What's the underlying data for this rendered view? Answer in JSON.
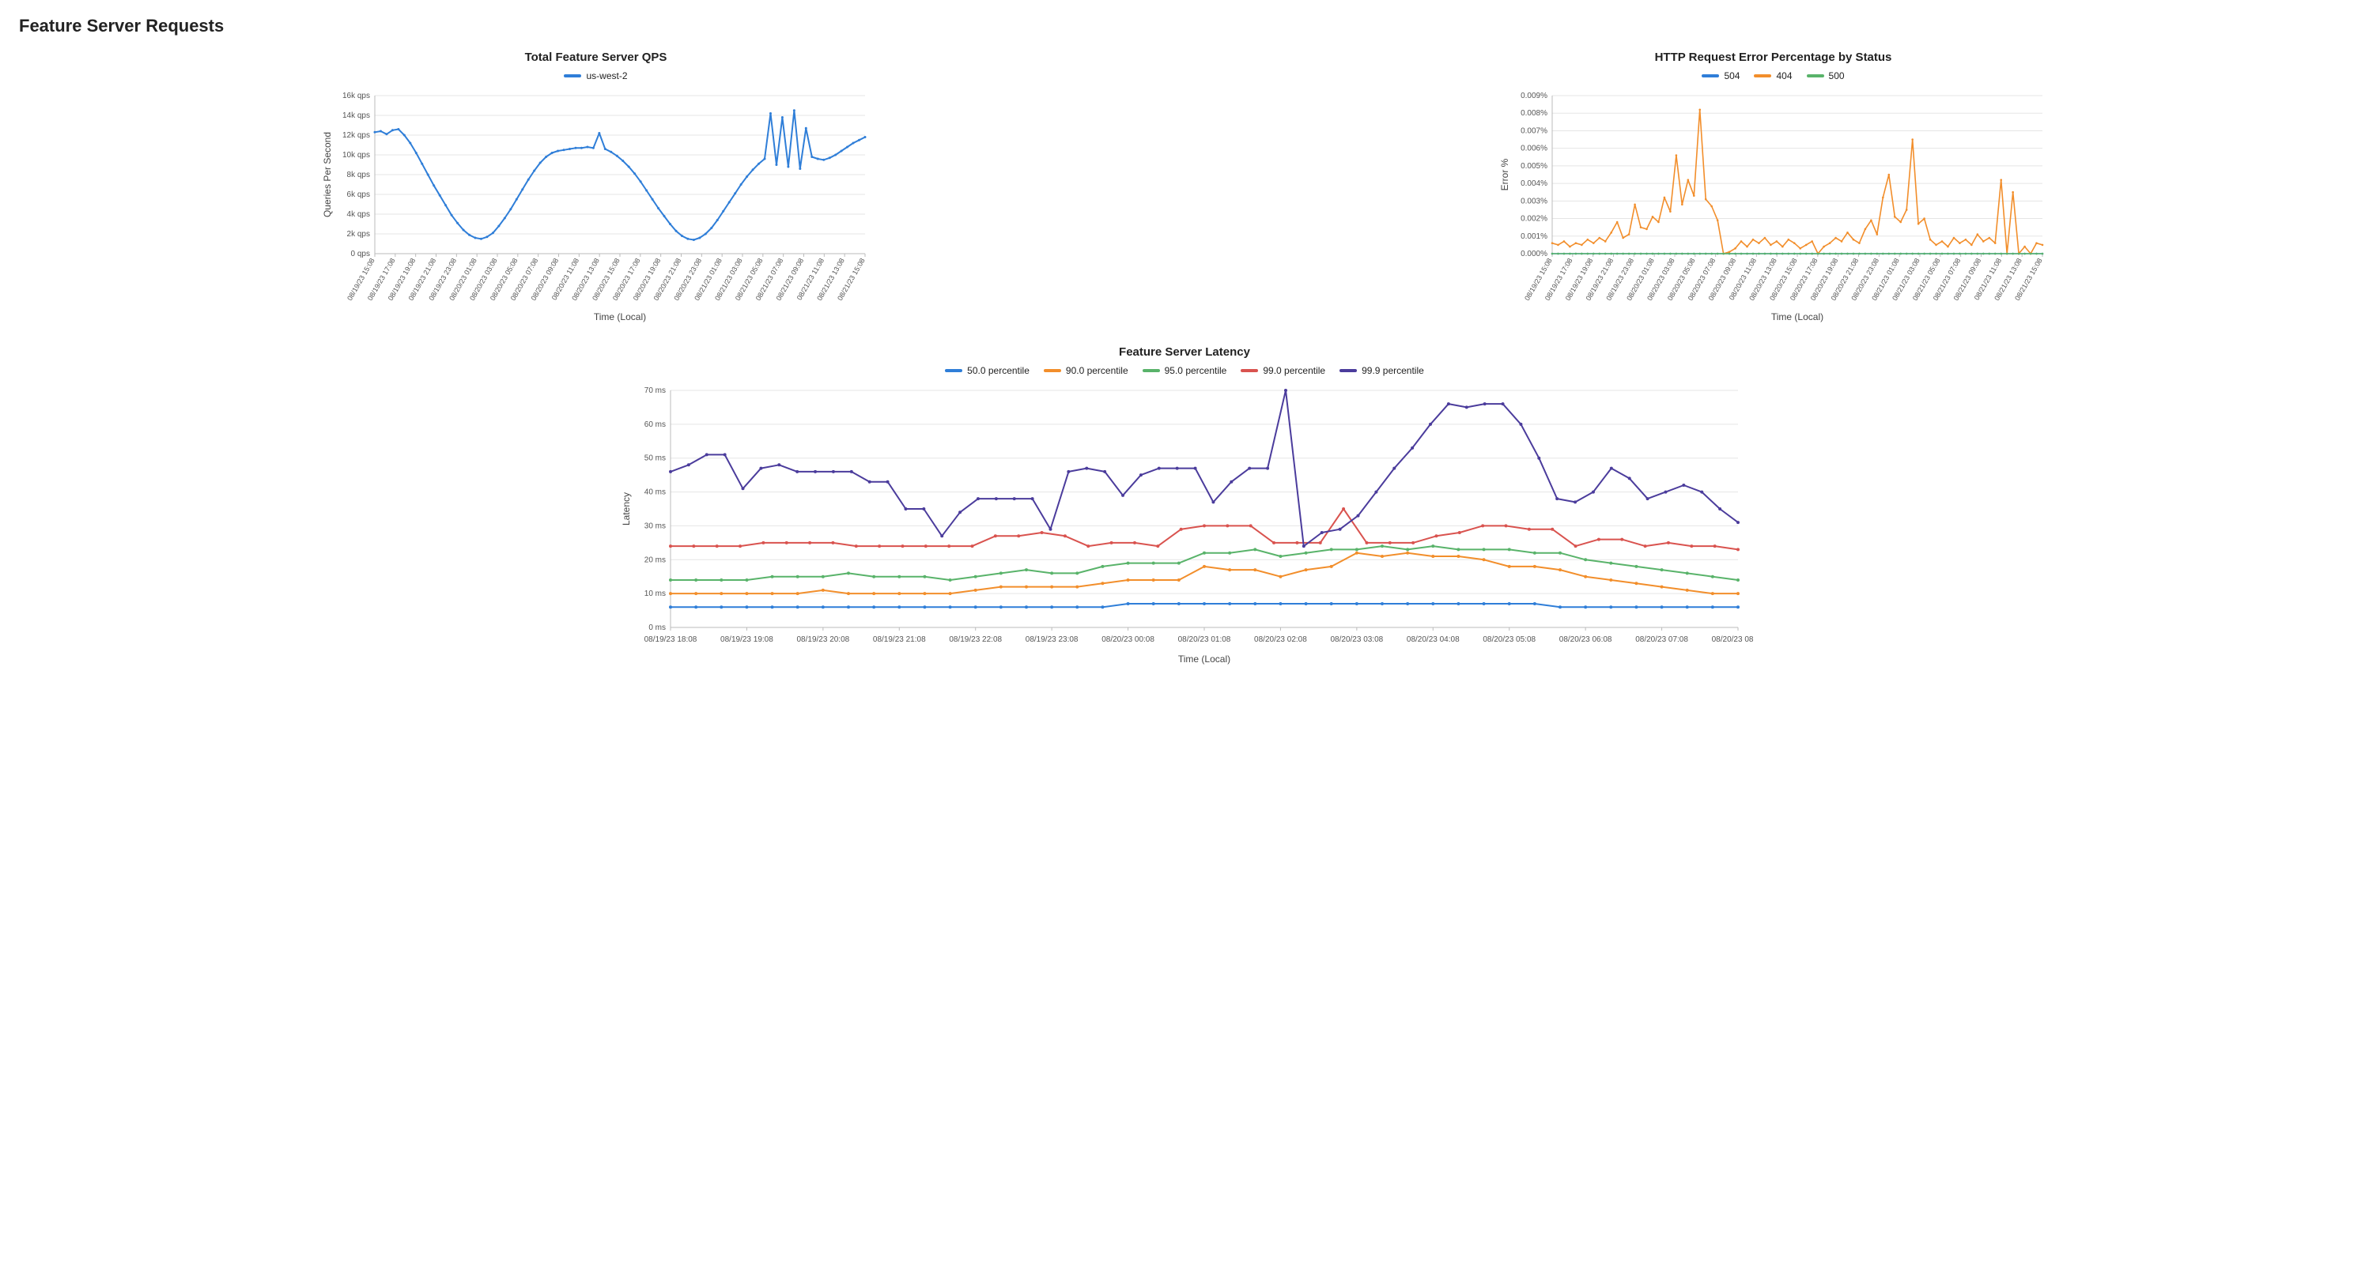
{
  "page_title": "Feature Server Requests",
  "colors": {
    "blue": "#2f7ed8",
    "orange": "#f28e2b",
    "green": "#59b36a",
    "red": "#d9534f",
    "purple": "#4b3c9c",
    "grid": "#e5e5e5",
    "axis": "#bbbbbb",
    "text": "#444444",
    "bg": "#ffffff"
  },
  "qps_chart": {
    "title": "Total Feature Server QPS",
    "legend": [
      {
        "label": "us-west-2",
        "color": "#2f7ed8"
      }
    ],
    "x_label": "Time (Local)",
    "y_label": "Queries Per Second",
    "y_ticks": [
      0,
      2000,
      4000,
      6000,
      8000,
      10000,
      12000,
      14000,
      16000
    ],
    "y_tick_labels": [
      "0 qps",
      "2k qps",
      "4k qps",
      "6k qps",
      "8k qps",
      "10k qps",
      "12k qps",
      "14k qps",
      "16k qps"
    ],
    "x_ticks": [
      "08/19/23 15:08",
      "08/19/23 17:08",
      "08/19/23 19:08",
      "08/19/23 21:08",
      "08/19/23 23:08",
      "08/20/23 01:08",
      "08/20/23 03:08",
      "08/20/23 05:08",
      "08/20/23 07:08",
      "08/20/23 09:08",
      "08/20/23 11:08",
      "08/20/23 13:08",
      "08/20/23 15:08",
      "08/20/23 17:08",
      "08/20/23 19:08",
      "08/20/23 21:08",
      "08/20/23 23:08",
      "08/21/23 01:08",
      "08/21/23 03:08",
      "08/21/23 05:08",
      "08/21/23 07:08",
      "08/21/23 09:08",
      "08/21/23 11:08",
      "08/21/23 13:08",
      "08/21/23 15:08"
    ],
    "series": [
      {
        "name": "us-west-2",
        "color": "#2f7ed8",
        "values": [
          12300,
          12400,
          12100,
          12500,
          12600,
          12000,
          11200,
          10200,
          9100,
          8000,
          6900,
          5900,
          4900,
          3900,
          3100,
          2400,
          1900,
          1600,
          1500,
          1700,
          2100,
          2800,
          3600,
          4500,
          5500,
          6500,
          7500,
          8400,
          9200,
          9800,
          10200,
          10400,
          10500,
          10600,
          10700,
          10700,
          10800,
          10700,
          12200,
          10600,
          10300,
          9900,
          9400,
          8800,
          8100,
          7300,
          6400,
          5500,
          4600,
          3800,
          3000,
          2300,
          1800,
          1500,
          1400,
          1600,
          2000,
          2600,
          3400,
          4300,
          5200,
          6100,
          7000,
          7800,
          8500,
          9100,
          9600,
          14200,
          9000,
          13800,
          8800,
          14500,
          8600,
          12700,
          9800,
          9600,
          9500,
          9700,
          10000,
          10400,
          10800,
          11200,
          11500,
          11800
        ]
      }
    ]
  },
  "error_chart": {
    "title": "HTTP Request Error Percentage by Status",
    "legend": [
      {
        "label": "504",
        "color": "#2f7ed8"
      },
      {
        "label": "404",
        "color": "#f28e2b"
      },
      {
        "label": "500",
        "color": "#59b36a"
      }
    ],
    "x_label": "Time (Local)",
    "y_label": "Error %",
    "y_ticks": [
      0,
      0.001,
      0.002,
      0.003,
      0.004,
      0.005,
      0.006,
      0.007,
      0.008,
      0.009
    ],
    "y_tick_labels": [
      "0.000%",
      "0.001%",
      "0.002%",
      "0.003%",
      "0.004%",
      "0.005%",
      "0.006%",
      "0.007%",
      "0.008%",
      "0.009%"
    ],
    "x_ticks": [
      "08/19/23 15:08",
      "08/19/23 17:08",
      "08/19/23 19:08",
      "08/19/23 21:08",
      "08/19/23 23:08",
      "08/20/23 01:08",
      "08/20/23 03:08",
      "08/20/23 05:08",
      "08/20/23 07:08",
      "08/20/23 09:08",
      "08/20/23 11:08",
      "08/20/23 13:08",
      "08/20/23 15:08",
      "08/20/23 17:08",
      "08/20/23 19:08",
      "08/20/23 21:08",
      "08/20/23 23:08",
      "08/21/23 01:08",
      "08/21/23 03:08",
      "08/21/23 05:08",
      "08/21/23 07:08",
      "08/21/23 09:08",
      "08/21/23 11:08",
      "08/21/23 13:08",
      "08/21/23 15:08"
    ],
    "series": [
      {
        "name": "504",
        "color": "#2f7ed8",
        "values": [
          0,
          0,
          0,
          0,
          0,
          0,
          0,
          0,
          0,
          0,
          0,
          0,
          0,
          0,
          0,
          0,
          0,
          0,
          0,
          0,
          0,
          0,
          0,
          0,
          0,
          0,
          0,
          0,
          0,
          0,
          0,
          0,
          0,
          0,
          0,
          0,
          0,
          0,
          0,
          0,
          0,
          0,
          0,
          0,
          0,
          0,
          0,
          0,
          0,
          0,
          0,
          0,
          0,
          0,
          0,
          0,
          0,
          0,
          0,
          0,
          0,
          0,
          0,
          0,
          0,
          0,
          0,
          0,
          0,
          0,
          0,
          0,
          0,
          0,
          0,
          0,
          0,
          0,
          0,
          0,
          0,
          0,
          0,
          0
        ]
      },
      {
        "name": "404",
        "color": "#f28e2b",
        "values": [
          0.0006,
          0.0005,
          0.0007,
          0.0004,
          0.0006,
          0.0005,
          0.0008,
          0.0006,
          0.0009,
          0.0007,
          0.0012,
          0.0018,
          0.0009,
          0.0011,
          0.0028,
          0.0015,
          0.0014,
          0.0021,
          0.0018,
          0.0032,
          0.0024,
          0.0056,
          0.0028,
          0.0042,
          0.0033,
          0.0082,
          0.0031,
          0.0027,
          0.0019,
          0.0,
          0.0001,
          0.0003,
          0.0007,
          0.0004,
          0.0008,
          0.0006,
          0.0009,
          0.0005,
          0.0007,
          0.0004,
          0.0008,
          0.0006,
          0.0003,
          0.0005,
          0.0007,
          0.0,
          0.0004,
          0.0006,
          0.0009,
          0.0007,
          0.0012,
          0.0008,
          0.0006,
          0.0014,
          0.0019,
          0.0011,
          0.0032,
          0.0045,
          0.0021,
          0.0018,
          0.0025,
          0.0065,
          0.0017,
          0.002,
          0.0008,
          0.0005,
          0.0007,
          0.0004,
          0.0009,
          0.0006,
          0.0008,
          0.0005,
          0.0011,
          0.0007,
          0.0009,
          0.0006,
          0.0042,
          0.0,
          0.0035,
          0.0,
          0.0004,
          0.0,
          0.0006,
          0.0005
        ]
      },
      {
        "name": "500",
        "color": "#59b36a",
        "values": [
          0,
          0,
          0,
          0,
          0,
          0,
          0,
          0,
          0,
          0,
          0,
          0,
          0,
          0,
          0,
          0,
          0,
          0,
          0,
          0,
          0,
          0,
          0,
          0,
          0,
          0,
          0,
          0,
          0,
          0,
          0,
          0,
          0,
          0,
          0,
          0,
          0,
          0,
          0,
          0,
          0,
          0,
          0,
          0,
          0,
          0,
          0,
          0,
          0,
          0,
          0,
          0,
          0,
          0,
          0,
          0,
          0,
          0,
          0,
          0,
          0,
          0,
          0,
          0,
          0,
          0,
          0,
          0,
          0,
          0,
          0,
          0,
          0,
          0,
          0,
          0,
          0,
          0,
          0,
          0,
          0,
          0,
          0,
          0
        ]
      }
    ]
  },
  "latency_chart": {
    "title": "Feature Server Latency",
    "legend": [
      {
        "label": "50.0 percentile",
        "color": "#2f7ed8"
      },
      {
        "label": "90.0 percentile",
        "color": "#f28e2b"
      },
      {
        "label": "95.0 percentile",
        "color": "#59b36a"
      },
      {
        "label": "99.0 percentile",
        "color": "#d9534f"
      },
      {
        "label": "99.9 percentile",
        "color": "#4b3c9c"
      }
    ],
    "x_label": "Time (Local)",
    "y_label": "Latency",
    "y_ticks": [
      0,
      10,
      20,
      30,
      40,
      50,
      60,
      70
    ],
    "y_tick_labels": [
      "0 ms",
      "10 ms",
      "20 ms",
      "30 ms",
      "40 ms",
      "50 ms",
      "60 ms",
      "70 ms"
    ],
    "x_ticks": [
      "08/19/23 18:08",
      "08/19/23 19:08",
      "08/19/23 20:08",
      "08/19/23 21:08",
      "08/19/23 22:08",
      "08/19/23 23:08",
      "08/20/23 00:08",
      "08/20/23 01:08",
      "08/20/23 02:08",
      "08/20/23 03:08",
      "08/20/23 04:08",
      "08/20/23 05:08",
      "08/20/23 06:08",
      "08/20/23 07:08",
      "08/20/23 08:08"
    ],
    "series": [
      {
        "name": "50.0",
        "color": "#2f7ed8",
        "values": [
          6,
          6,
          6,
          6,
          6,
          6,
          6,
          6,
          6,
          6,
          6,
          6,
          6,
          6,
          6,
          6,
          6,
          6,
          7,
          7,
          7,
          7,
          7,
          7,
          7,
          7,
          7,
          7,
          7,
          7,
          7,
          7,
          7,
          7,
          7,
          6,
          6,
          6,
          6,
          6,
          6,
          6,
          6
        ]
      },
      {
        "name": "90.0",
        "color": "#f28e2b",
        "values": [
          10,
          10,
          10,
          10,
          10,
          10,
          11,
          10,
          10,
          10,
          10,
          10,
          11,
          12,
          12,
          12,
          12,
          13,
          14,
          14,
          14,
          18,
          17,
          17,
          15,
          17,
          18,
          22,
          21,
          22,
          21,
          21,
          20,
          18,
          18,
          17,
          15,
          14,
          13,
          12,
          11,
          10,
          10
        ]
      },
      {
        "name": "95.0",
        "color": "#59b36a",
        "values": [
          14,
          14,
          14,
          14,
          15,
          15,
          15,
          16,
          15,
          15,
          15,
          14,
          15,
          16,
          17,
          16,
          16,
          18,
          19,
          19,
          19,
          22,
          22,
          23,
          21,
          22,
          23,
          23,
          24,
          23,
          24,
          23,
          23,
          23,
          22,
          22,
          20,
          19,
          18,
          17,
          16,
          15,
          14
        ]
      },
      {
        "name": "99.0",
        "color": "#d9534f",
        "values": [
          24,
          24,
          24,
          24,
          25,
          25,
          25,
          25,
          24,
          24,
          24,
          24,
          24,
          24,
          27,
          27,
          28,
          27,
          24,
          25,
          25,
          24,
          29,
          30,
          30,
          30,
          25,
          25,
          25,
          35,
          25,
          25,
          25,
          27,
          28,
          30,
          30,
          29,
          29,
          24,
          26,
          26,
          24,
          25,
          24,
          24,
          23
        ]
      },
      {
        "name": "99.9",
        "color": "#4b3c9c",
        "values": [
          46,
          48,
          51,
          51,
          41,
          47,
          48,
          46,
          46,
          46,
          46,
          43,
          43,
          35,
          35,
          27,
          34,
          38,
          38,
          38,
          38,
          29,
          46,
          47,
          46,
          39,
          45,
          47,
          47,
          47,
          37,
          43,
          47,
          47,
          70,
          24,
          28,
          29,
          33,
          40,
          47,
          53,
          60,
          66,
          65,
          66,
          66,
          60,
          50,
          38,
          37,
          40,
          47,
          44,
          38,
          40,
          42,
          40,
          35,
          31
        ]
      }
    ]
  }
}
